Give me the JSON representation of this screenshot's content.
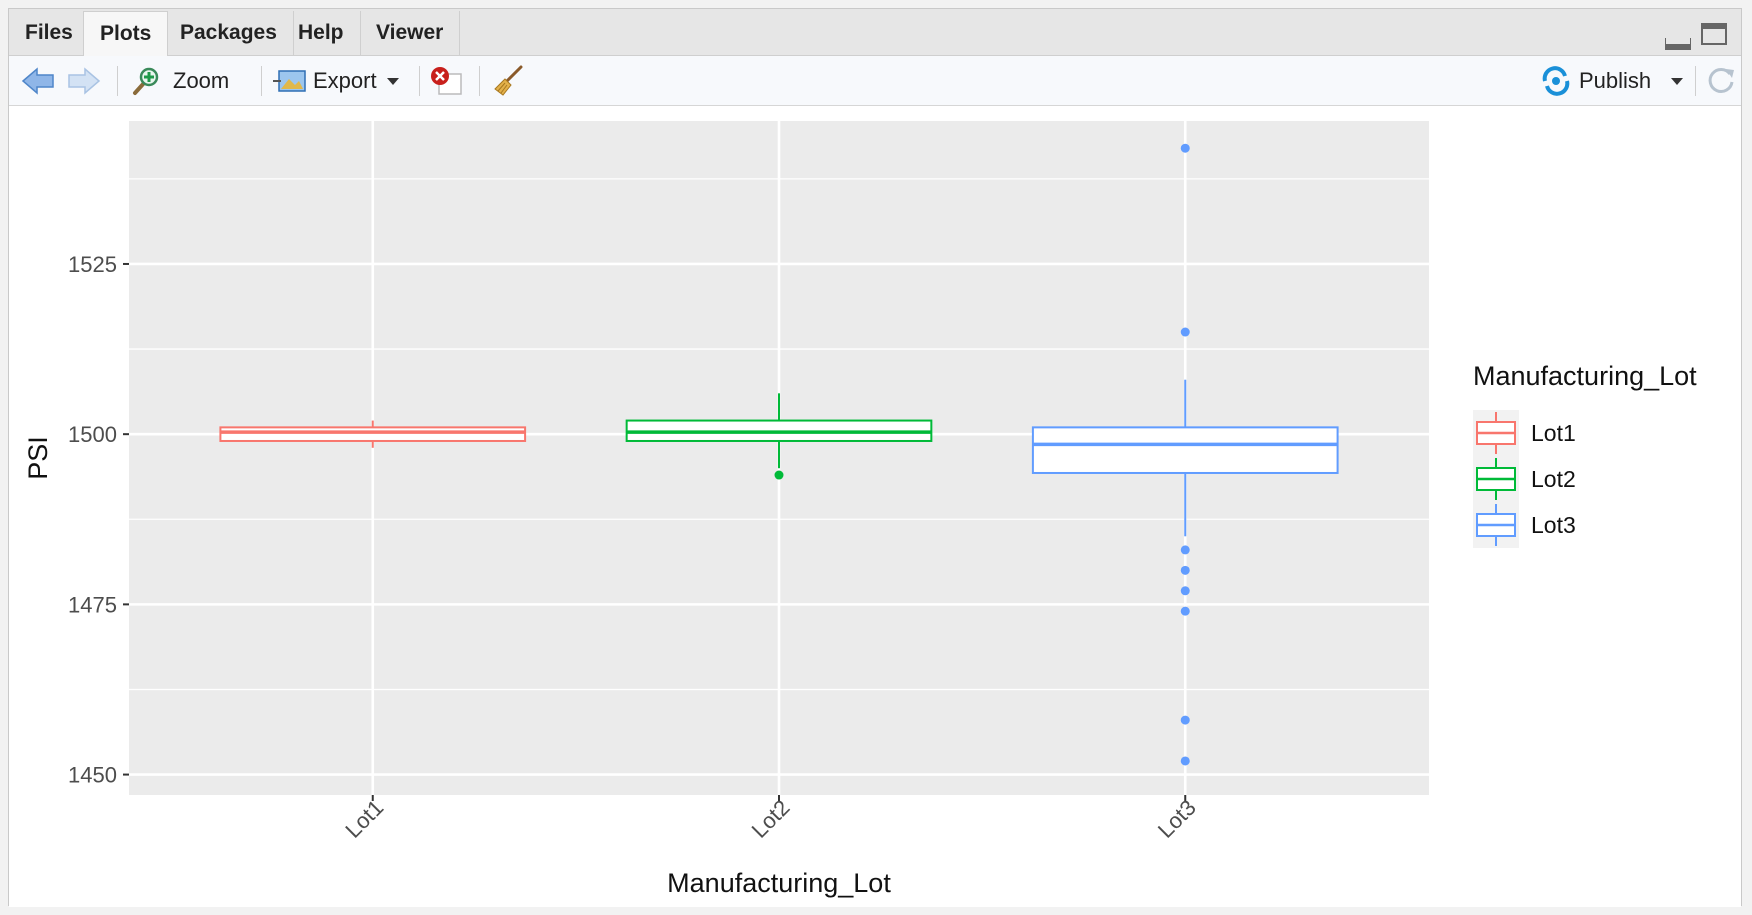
{
  "tabs": [
    {
      "label": "Files"
    },
    {
      "label": "Plots"
    },
    {
      "label": "Packages"
    },
    {
      "label": "Help"
    },
    {
      "label": "Viewer"
    }
  ],
  "active_tab": "Plots",
  "toolbar": {
    "zoom_label": "Zoom",
    "export_label": "Export",
    "publish_label": "Publish"
  },
  "colors": {
    "panel_bg": "#ebebeb",
    "lot1": "#F8766D",
    "lot2": "#00BA38",
    "lot3": "#619CFF",
    "accent_blue": "#1a90d8"
  },
  "chart_data": {
    "type": "box",
    "xlabel": "Manufacturing_Lot",
    "ylabel": "PSI",
    "categories": [
      "Lot1",
      "Lot2",
      "Lot3"
    ],
    "ylim": [
      1447,
      1546
    ],
    "yticks": [
      1450,
      1475,
      1500,
      1525
    ],
    "grid": true,
    "legend": {
      "title": "Manufacturing_Lot",
      "entries": [
        "Lot1",
        "Lot2",
        "Lot3"
      ],
      "position": "right"
    },
    "series": [
      {
        "name": "Lot1",
        "whisker_low": 1498,
        "q1": 1499,
        "median": 1500.3,
        "q3": 1501,
        "whisker_high": 1502,
        "outliers": []
      },
      {
        "name": "Lot2",
        "whisker_low": 1495,
        "q1": 1499,
        "median": 1500.3,
        "q3": 1502,
        "whisker_high": 1506,
        "outliers": [
          1494
        ]
      },
      {
        "name": "Lot3",
        "whisker_low": 1485,
        "q1": 1494.3,
        "median": 1498.5,
        "q3": 1501,
        "whisker_high": 1508,
        "outliers": [
          1542,
          1515,
          1483,
          1480,
          1477,
          1474,
          1458,
          1452
        ]
      }
    ]
  }
}
